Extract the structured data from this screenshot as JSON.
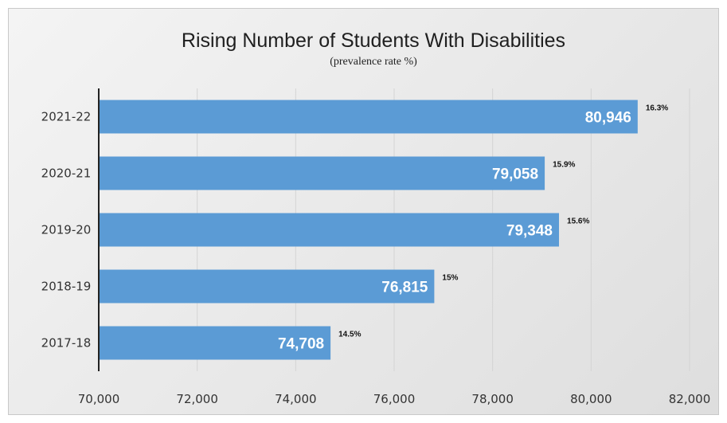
{
  "chart_data": {
    "type": "bar",
    "orientation": "horizontal",
    "title": "Rising Number of Students With Disabilities",
    "subtitle": "(prevalence rate %)",
    "categories": [
      "2021-22",
      "2020-21",
      "2019-20",
      "2018-19",
      "2017-18"
    ],
    "values": [
      80946,
      79058,
      79348,
      76815,
      74708
    ],
    "value_labels": [
      "80,946",
      "79,058",
      "79,348",
      "76,815",
      "74,708"
    ],
    "rate_labels": [
      "16.3%",
      "15.9%",
      "15.6%",
      "15%",
      "14.5%"
    ],
    "xlim": [
      70000,
      82000
    ],
    "xticks": [
      70000,
      72000,
      74000,
      76000,
      78000,
      80000,
      82000
    ],
    "xtick_labels": [
      "70,000",
      "72,000",
      "74,000",
      "76,000",
      "78,000",
      "80,000",
      "82,000"
    ],
    "grid": true,
    "legend": "none",
    "bar_color": "#5b9bd5",
    "grid_color": "#d4d4d4"
  }
}
